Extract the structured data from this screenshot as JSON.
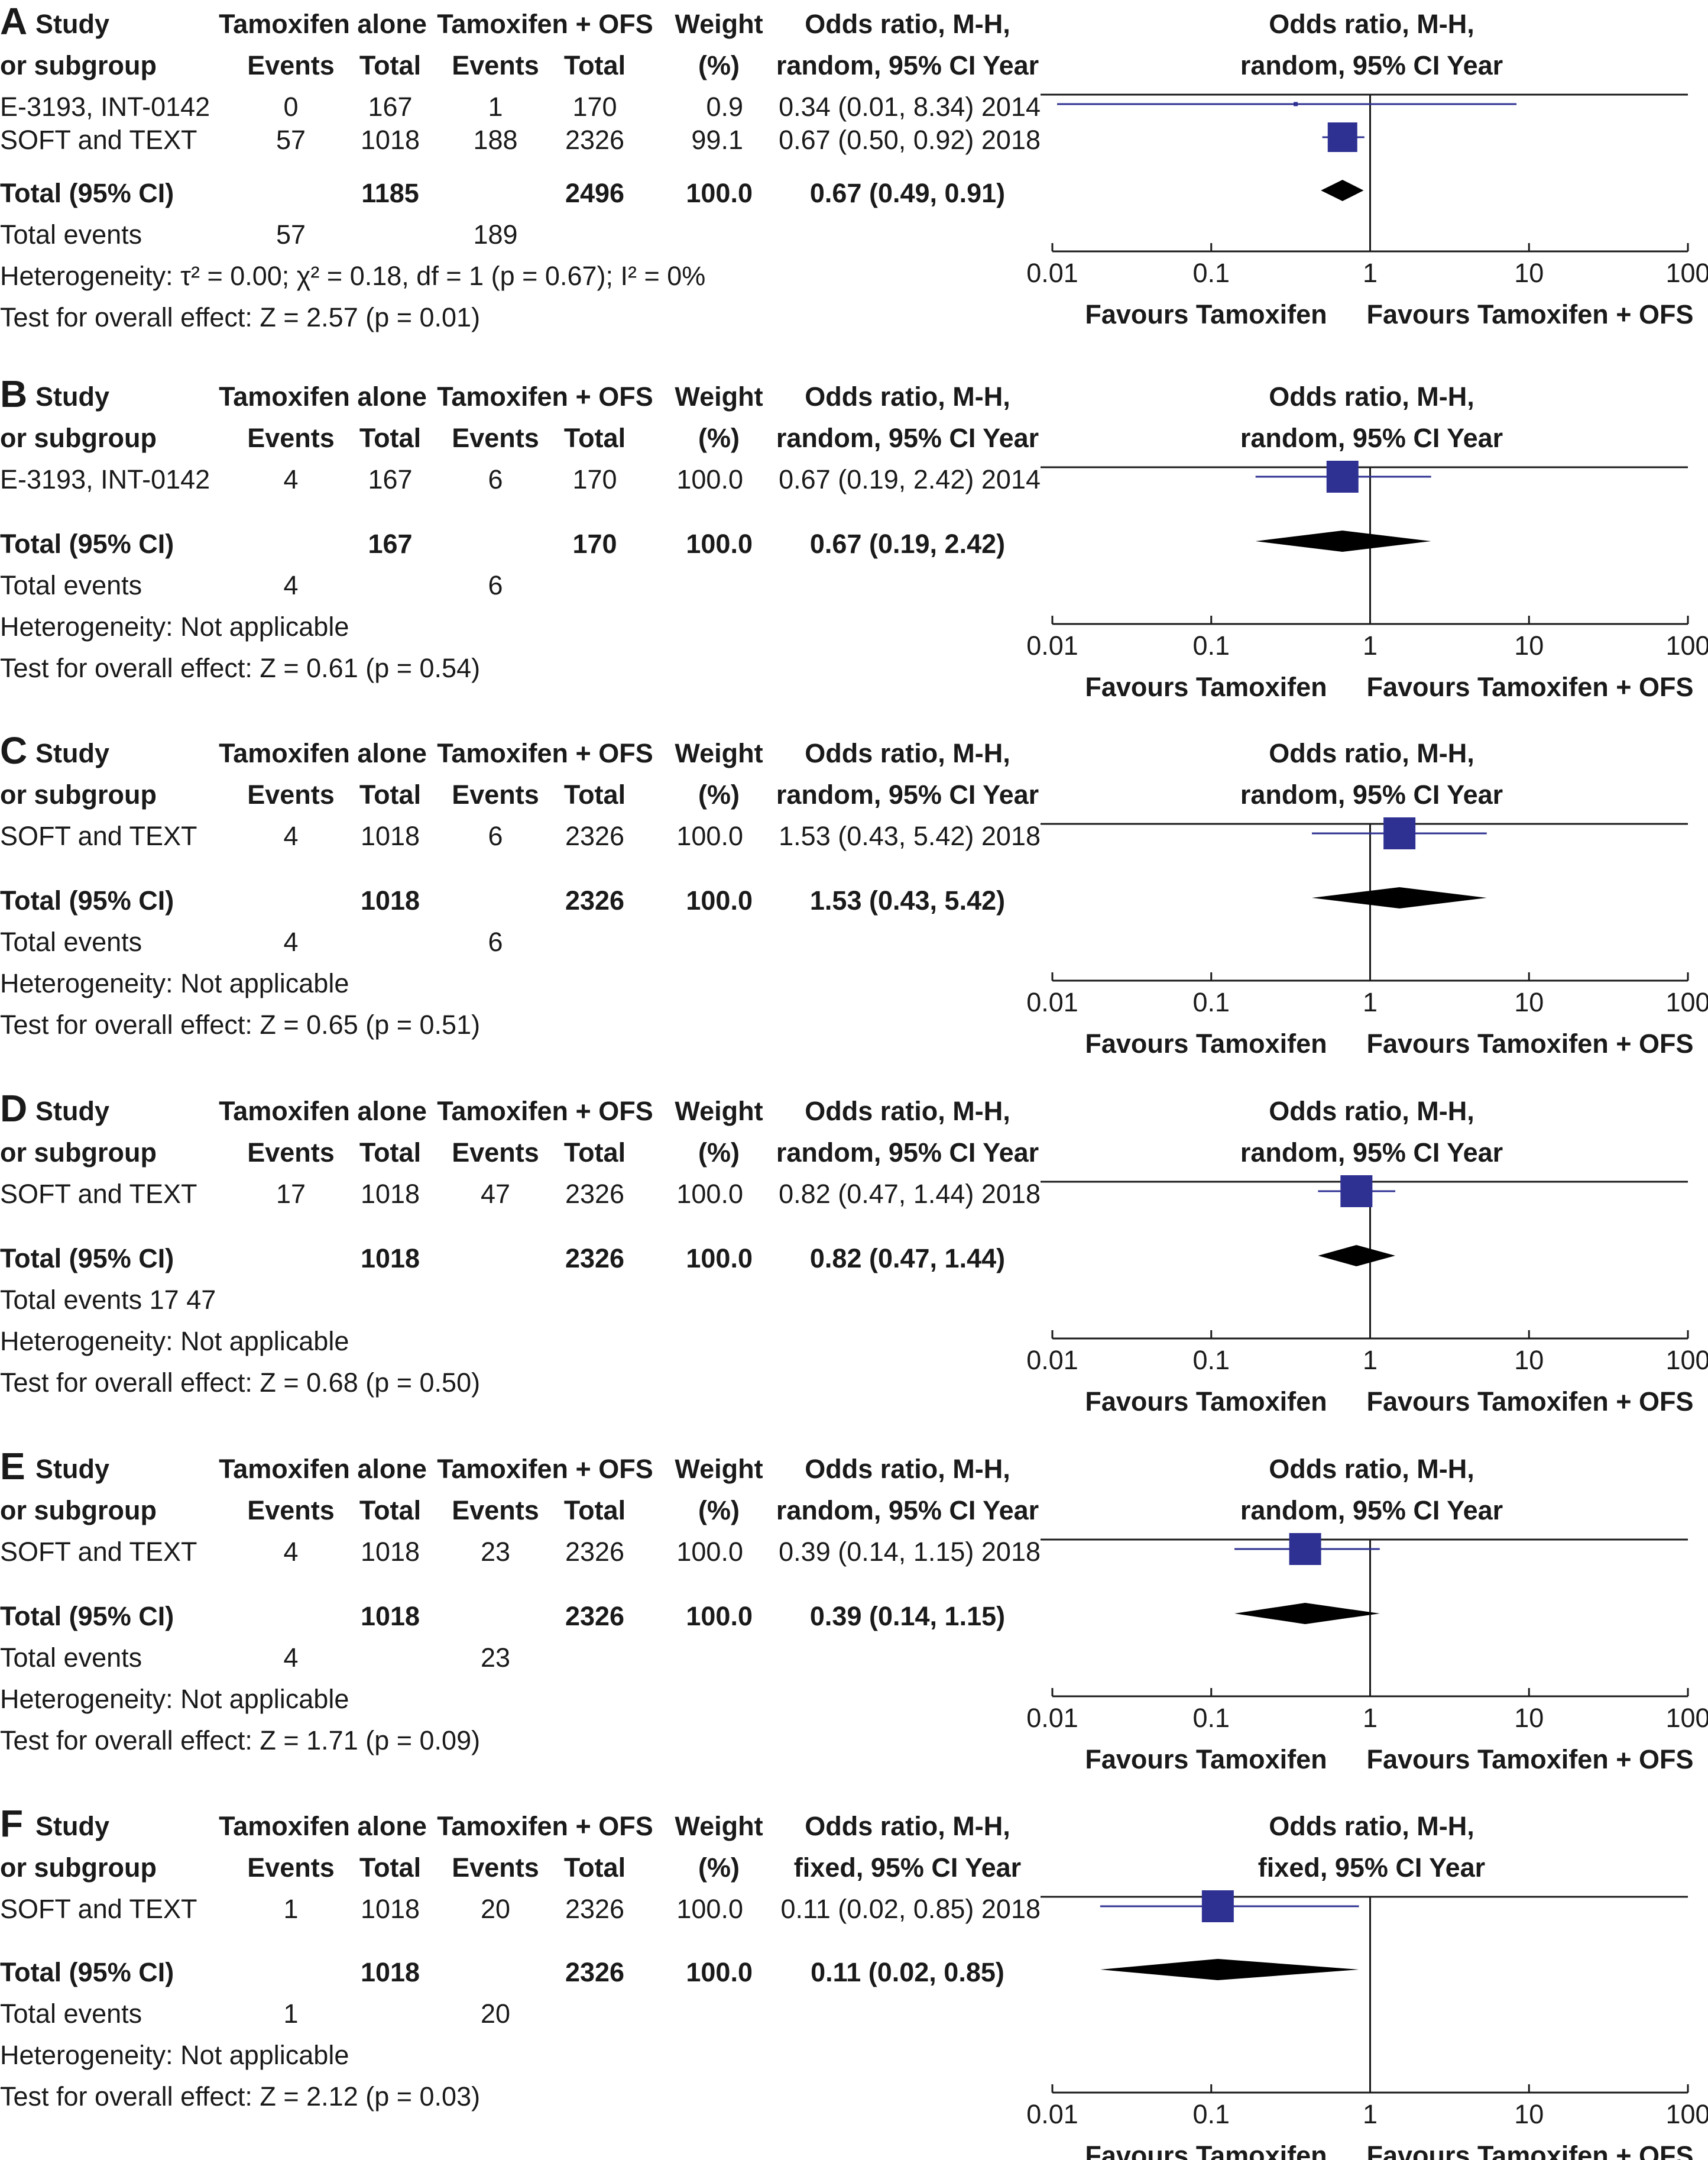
{
  "chart_data": [
    {
      "type": "forest",
      "panel": "A",
      "headers": {
        "study": [
          "Study",
          "or subgroup"
        ],
        "group1": "Tamoxifen alone",
        "group2": "Tamoxifen + OFS",
        "events": "Events",
        "total": "Total",
        "weight": [
          "Weight",
          "(%)"
        ],
        "or": [
          "Odds ratio, M-H,",
          "random, 95% CI Year"
        ],
        "plot": [
          "Odds ratio, M-H,",
          "random, 95% CI Year"
        ]
      },
      "studies": [
        {
          "name": "E-3193, INT-0142",
          "e1": "0",
          "t1": "167",
          "e2": "1",
          "t2": "170",
          "weight": "0.9",
          "ci_text": "0.34 (0.01, 8.34) 2014",
          "or": 0.34,
          "lo": 0.01,
          "hi": 8.34,
          "w": 0.9
        },
        {
          "name": "SOFT and TEXT",
          "e1": "57",
          "t1": "1018",
          "e2": "188",
          "t2": "2326",
          "weight": "99.1",
          "ci_text": "0.67 (0.50, 0.92) 2018",
          "or": 0.67,
          "lo": 0.5,
          "hi": 0.92,
          "w": 99.1
        }
      ],
      "total": {
        "label": "Total (95% CI)",
        "t1": "1185",
        "t2": "2496",
        "weight": "100.0",
        "ci_text": "0.67 (0.49, 0.91)",
        "or": 0.67,
        "lo": 0.49,
        "hi": 0.91
      },
      "total_events": {
        "label": "Total events",
        "e1": "57",
        "e2": "189"
      },
      "heterogeneity": "Heterogeneity: τ² = 0.00; χ² = 0.18, df = 1 (p = 0.67); I² = 0%",
      "overall": "Test for overall effect: Z = 2.57 (p = 0.01)",
      "x_scale": "log",
      "xlim": [
        0.01,
        100
      ],
      "ticks": [
        "0.01",
        "0.1",
        "1",
        "10",
        "100"
      ],
      "favours_left": "Favours Tamoxifen",
      "favours_right": "Favours Tamoxifen + OFS"
    },
    {
      "type": "forest",
      "panel": "B",
      "headers": {
        "study": [
          "Study",
          "or subgroup"
        ],
        "group1": "Tamoxifen alone",
        "group2": "Tamoxifen + OFS",
        "events": "Events",
        "total": "Total",
        "weight": [
          "Weight",
          "(%)"
        ],
        "or": [
          "Odds ratio, M-H,",
          "random, 95% CI Year"
        ],
        "plot": [
          "Odds ratio, M-H,",
          "random, 95% CI Year"
        ]
      },
      "studies": [
        {
          "name": "E-3193, INT-0142",
          "e1": "4",
          "t1": "167",
          "e2": "6",
          "t2": "170",
          "weight": "100.0",
          "ci_text": "0.67 (0.19, 2.42) 2014",
          "or": 0.67,
          "lo": 0.19,
          "hi": 2.42,
          "w": 100.0
        }
      ],
      "total": {
        "label": "Total (95% CI)",
        "t1": "167",
        "t2": "170",
        "weight": "100.0",
        "ci_text": "0.67 (0.19, 2.42)",
        "or": 0.67,
        "lo": 0.19,
        "hi": 2.42
      },
      "total_events": {
        "label": "Total events",
        "e1": "4",
        "e2": "6"
      },
      "heterogeneity": "Heterogeneity: Not applicable",
      "overall": "Test for overall effect: Z = 0.61 (p = 0.54)",
      "x_scale": "log",
      "xlim": [
        0.01,
        100
      ],
      "ticks": [
        "0.01",
        "0.1",
        "1",
        "10",
        "100"
      ],
      "favours_left": "Favours Tamoxifen",
      "favours_right": "Favours Tamoxifen + OFS"
    },
    {
      "type": "forest",
      "panel": "C",
      "headers": {
        "study": [
          "Study",
          "or subgroup"
        ],
        "group1": "Tamoxifen alone",
        "group2": "Tamoxifen + OFS",
        "events": "Events",
        "total": "Total",
        "weight": [
          "Weight",
          "(%)"
        ],
        "or": [
          "Odds ratio, M-H,",
          "random, 95% CI Year"
        ],
        "plot": [
          "Odds ratio, M-H,",
          "random, 95% CI Year"
        ]
      },
      "studies": [
        {
          "name": "SOFT and TEXT",
          "e1": "4",
          "t1": "1018",
          "e2": "6",
          "t2": "2326",
          "weight": "100.0",
          "ci_text": "1.53 (0.43, 5.42) 2018",
          "or": 1.53,
          "lo": 0.43,
          "hi": 5.42,
          "w": 100.0
        }
      ],
      "total": {
        "label": "Total (95% CI)",
        "t1": "1018",
        "t2": "2326",
        "weight": "100.0",
        "ci_text": "1.53 (0.43, 5.42)",
        "or": 1.53,
        "lo": 0.43,
        "hi": 5.42
      },
      "total_events": {
        "label": "Total events",
        "e1": "4",
        "e2": "6"
      },
      "heterogeneity": "Heterogeneity: Not applicable",
      "overall": "Test for overall effect: Z = 0.65 (p = 0.51)",
      "x_scale": "log",
      "xlim": [
        0.01,
        100
      ],
      "ticks": [
        "0.01",
        "0.1",
        "1",
        "10",
        "100"
      ],
      "favours_left": "Favours Tamoxifen",
      "favours_right": "Favours Tamoxifen + OFS"
    },
    {
      "type": "forest",
      "panel": "D",
      "headers": {
        "study": [
          "Study",
          "or subgroup"
        ],
        "group1": "Tamoxifen alone",
        "group2": "Tamoxifen + OFS",
        "events": "Events",
        "total": "Total",
        "weight": [
          "Weight",
          "(%)"
        ],
        "or": [
          "Odds ratio, M-H,",
          "random, 95% CI Year"
        ],
        "plot": [
          "Odds ratio, M-H,",
          "random, 95% CI Year"
        ]
      },
      "studies": [
        {
          "name": "SOFT and TEXT",
          "e1": "17",
          "t1": "1018",
          "e2": "47",
          "t2": "2326",
          "weight": "100.0",
          "ci_text": "0.82 (0.47, 1.44) 2018",
          "or": 0.82,
          "lo": 0.47,
          "hi": 1.44,
          "w": 100.0
        }
      ],
      "total": {
        "label": "Total (95% CI)",
        "t1": "1018",
        "t2": "2326",
        "weight": "100.0",
        "ci_text": "0.82 (0.47, 1.44)",
        "or": 0.82,
        "lo": 0.47,
        "hi": 1.44
      },
      "total_events": {
        "label": "Total events 17 47",
        "e1": "",
        "e2": ""
      },
      "heterogeneity": "Heterogeneity: Not applicable",
      "overall": "Test for overall effect: Z = 0.68 (p = 0.50)",
      "x_scale": "log",
      "xlim": [
        0.01,
        100
      ],
      "ticks": [
        "0.01",
        "0.1",
        "1",
        "10",
        "100"
      ],
      "favours_left": "Favours Tamoxifen",
      "favours_right": "Favours Tamoxifen + OFS"
    },
    {
      "type": "forest",
      "panel": "E",
      "headers": {
        "study": [
          "Study",
          "or subgroup"
        ],
        "group1": "Tamoxifen alone",
        "group2": "Tamoxifen + OFS",
        "events": "Events",
        "total": "Total",
        "weight": [
          "Weight",
          "(%)"
        ],
        "or": [
          "Odds ratio, M-H,",
          "random, 95% CI Year"
        ],
        "plot": [
          "Odds ratio, M-H,",
          "random, 95% CI Year"
        ]
      },
      "studies": [
        {
          "name": "SOFT and TEXT",
          "e1": "4",
          "t1": "1018",
          "e2": "23",
          "t2": "2326",
          "weight": "100.0",
          "ci_text": "0.39 (0.14, 1.15) 2018",
          "or": 0.39,
          "lo": 0.14,
          "hi": 1.15,
          "w": 100.0
        }
      ],
      "total": {
        "label": "Total (95% CI)",
        "t1": "1018",
        "t2": "2326",
        "weight": "100.0",
        "ci_text": "0.39 (0.14, 1.15)",
        "or": 0.39,
        "lo": 0.14,
        "hi": 1.15
      },
      "total_events": {
        "label": "Total events",
        "e1": "4",
        "e2": "23"
      },
      "heterogeneity": "Heterogeneity: Not applicable",
      "overall": "Test for overall effect: Z = 1.71 (p = 0.09)",
      "x_scale": "log",
      "xlim": [
        0.01,
        100
      ],
      "ticks": [
        "0.01",
        "0.1",
        "1",
        "10",
        "100"
      ],
      "favours_left": "Favours Tamoxifen",
      "favours_right": "Favours Tamoxifen + OFS"
    },
    {
      "type": "forest",
      "panel": "F",
      "headers": {
        "study": [
          "Study",
          "or subgroup"
        ],
        "group1": "Tamoxifen alone",
        "group2": "Tamoxifen + OFS",
        "events": "Events",
        "total": "Total",
        "weight": [
          "Weight",
          "(%)"
        ],
        "or": [
          "Odds ratio, M-H,",
          "fixed, 95% CI Year"
        ],
        "plot": [
          "Odds ratio, M-H,",
          "fixed, 95% CI Year"
        ]
      },
      "studies": [
        {
          "name": "SOFT and TEXT",
          "e1": "1",
          "t1": "1018",
          "e2": "20",
          "t2": "2326",
          "weight": "100.0",
          "ci_text": "0.11 (0.02, 0.85) 2018",
          "or": 0.11,
          "lo": 0.02,
          "hi": 0.85,
          "w": 100.0
        }
      ],
      "total": {
        "label": "Total (95% CI)",
        "t1": "1018",
        "t2": "2326",
        "weight": "100.0",
        "ci_text": "0.11 (0.02, 0.85)",
        "or": 0.11,
        "lo": 0.02,
        "hi": 0.85
      },
      "total_events": {
        "label": "Total events",
        "e1": "1",
        "e2": "20"
      },
      "heterogeneity": "Heterogeneity: Not applicable",
      "overall": "Test for overall effect: Z = 2.12 (p = 0.03)",
      "x_scale": "log",
      "xlim": [
        0.01,
        100
      ],
      "ticks": [
        "0.01",
        "0.1",
        "1",
        "10",
        "100"
      ],
      "favours_left": "Favours Tamoxifen",
      "favours_right": "Favours Tamoxifen + OFS"
    }
  ],
  "colors": {
    "square": "#2e3192",
    "diamond": "#000000",
    "line": "#1a1a1a",
    "text": "#1a1a1a"
  }
}
